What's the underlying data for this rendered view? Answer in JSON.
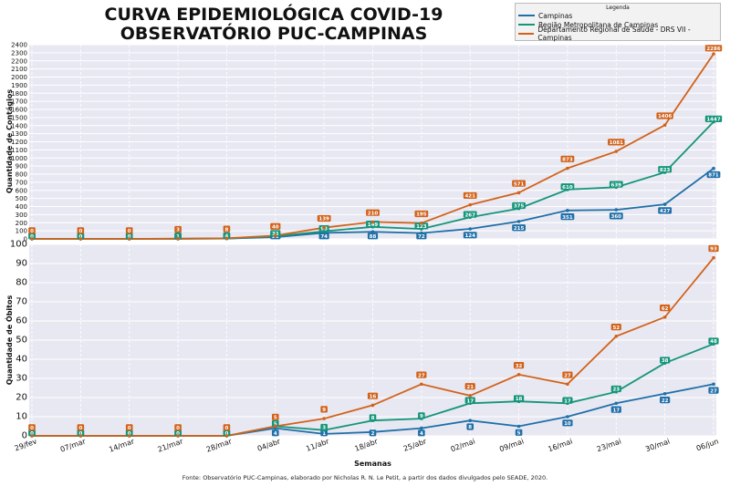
{
  "title_line1": "CURVA EPIDEMIOLÓGICA COVID-19",
  "title_line2": "OBSERVATÓRIO PUC-CAMPINAS",
  "legend": {
    "title": "Legenda",
    "items": [
      {
        "label": "Campinas",
        "color": "#1f6fa8"
      },
      {
        "label": "Região Metropolitana de Campinas",
        "color": "#15957a"
      },
      {
        "label": "Departamento Regional de Saúde - DRS VII - Campinas",
        "color": "#d2621a"
      }
    ]
  },
  "footer": "Fonte: Observatório PUC-Campinas, elaborado por Nicholas R. N. Le Petit, a partir dos dados divulgados pelo SEADE, 2020.",
  "chart_data": [
    {
      "type": "line",
      "ylabel": "Quantidade de Contágios",
      "ylim": [
        0,
        2400
      ],
      "yticks": [
        0,
        100,
        200,
        300,
        400,
        500,
        600,
        700,
        800,
        900,
        1000,
        1100,
        1200,
        1300,
        1400,
        1500,
        1600,
        1700,
        1800,
        1900,
        2000,
        2100,
        2200,
        2300,
        2400
      ],
      "categories": [
        "29/fev",
        "07/mar",
        "14/mar",
        "21/mar",
        "28/mar",
        "04/abr",
        "11/abr",
        "18/abr",
        "25/abr",
        "02/mai",
        "09/mai",
        "16/mai",
        "23/mai",
        "30/mai",
        "06/jun"
      ],
      "series": [
        {
          "name": "Campinas",
          "color": "#1f6fa8",
          "values": [
            0,
            0,
            0,
            1,
            4,
            21,
            74,
            88,
            72,
            124,
            215,
            351,
            360,
            427,
            871
          ]
        },
        {
          "name": "Região Metropolitana de Campinas",
          "color": "#15957a",
          "values": [
            0,
            0,
            0,
            1,
            4,
            32,
            93,
            149,
            123,
            267,
            375,
            610,
            639,
            823,
            1447
          ]
        },
        {
          "name": "Departamento Regional de Saúde - DRS VII - Campinas",
          "color": "#d2621a",
          "values": [
            0,
            0,
            0,
            3,
            8,
            40,
            139,
            210,
            195,
            421,
            571,
            873,
            1081,
            1406,
            2286
          ]
        }
      ],
      "grid": true
    },
    {
      "type": "line",
      "xlabel": "Semanas",
      "ylabel": "Quantidade de Óbitos",
      "ylim": [
        0,
        100
      ],
      "yticks": [
        0,
        10,
        20,
        30,
        40,
        50,
        60,
        70,
        80,
        90,
        100
      ],
      "categories": [
        "29/fev",
        "07/mar",
        "14/mar",
        "21/mar",
        "28/mar",
        "04/abr",
        "11/abr",
        "18/abr",
        "25/abr",
        "02/mai",
        "09/mai",
        "16/mai",
        "23/mai",
        "30/mai",
        "06/jun"
      ],
      "series": [
        {
          "name": "Campinas",
          "color": "#1f6fa8",
          "values": [
            0,
            0,
            0,
            0,
            0,
            4,
            1,
            2,
            4,
            8,
            5,
            10,
            17,
            22,
            27
          ]
        },
        {
          "name": "Região Metropolitana de Campinas",
          "color": "#15957a",
          "values": [
            0,
            0,
            0,
            0,
            0,
            5,
            3,
            8,
            9,
            17,
            18,
            17,
            23,
            38,
            48
          ]
        },
        {
          "name": "Departamento Regional de Saúde - DRS VII - Campinas",
          "color": "#d2621a",
          "values": [
            0,
            0,
            0,
            0,
            0,
            5,
            9,
            16,
            27,
            21,
            32,
            27,
            52,
            62,
            93
          ]
        }
      ],
      "grid": true
    }
  ]
}
